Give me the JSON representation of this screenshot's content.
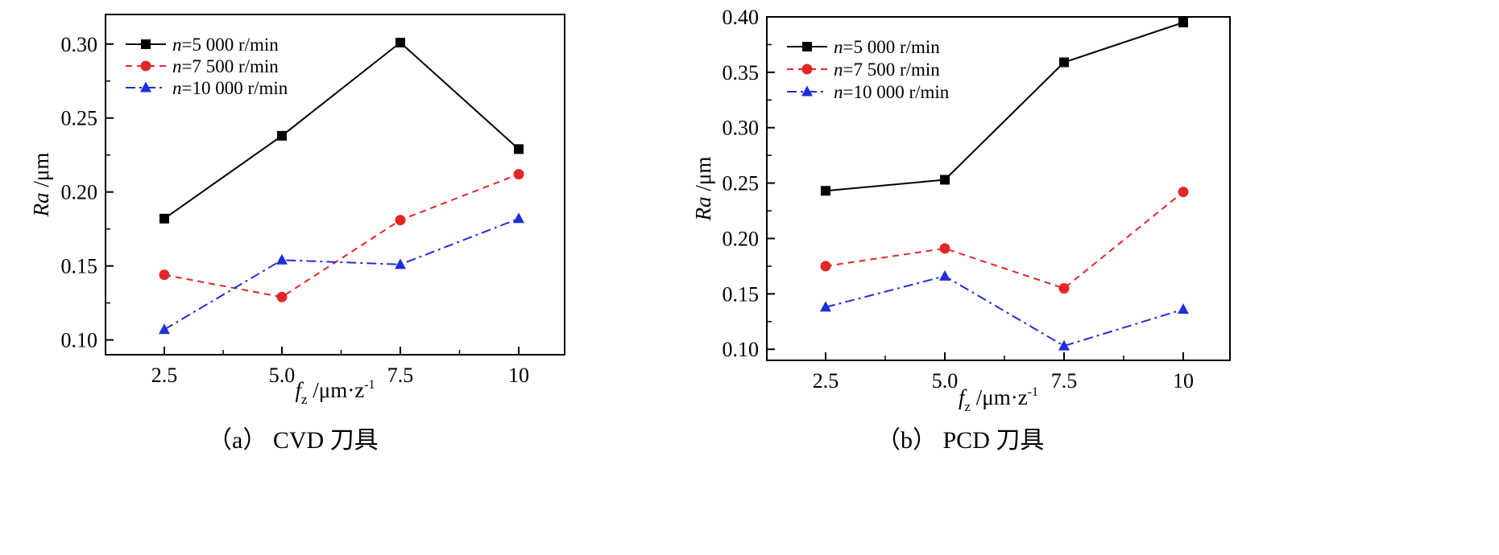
{
  "chart_data": [
    {
      "type": "line",
      "caption": "（a） CVD 刀具",
      "xlabel_main": "f",
      "xlabel_sub": "z",
      "xlabel_unit": " /μm·z",
      "xlabel_sup": "-1",
      "ylabel_main": "Ra",
      "ylabel_unit": " /μm",
      "categories": [
        "2.5",
        "5.0",
        "7.5",
        "10"
      ],
      "yticks": [
        "0.10",
        "0.15",
        "0.20",
        "0.25",
        "0.30"
      ],
      "ylim": [
        0.09,
        0.32
      ],
      "series": [
        {
          "name": "n=5 000 r/min",
          "name_italic": "n",
          "name_rest": "=5 000 r/min",
          "color": "#000000",
          "dash": "",
          "marker": "square",
          "values": [
            0.182,
            0.238,
            0.301,
            0.229
          ]
        },
        {
          "name": "n=7 500 r/min",
          "name_italic": "n",
          "name_rest": "=7 500 r/min",
          "color": "#e32626",
          "dash": "8,6",
          "marker": "circle",
          "values": [
            0.144,
            0.129,
            0.181,
            0.212
          ]
        },
        {
          "name": "n=10 000 r/min",
          "name_italic": "n",
          "name_rest": "=10 000 r/min",
          "color": "#1f2ed6",
          "dash": "12,5,3,5",
          "marker": "triangle",
          "values": [
            0.107,
            0.154,
            0.151,
            0.182
          ]
        }
      ]
    },
    {
      "type": "line",
      "caption": "（b） PCD 刀具",
      "xlabel_main": "f",
      "xlabel_sub": "z",
      "xlabel_unit": " /μm·z",
      "xlabel_sup": "-1",
      "ylabel_main": "Ra",
      "ylabel_unit": " /μm",
      "categories": [
        "2.5",
        "5.0",
        "7.5",
        "10"
      ],
      "yticks": [
        "0.10",
        "0.15",
        "0.20",
        "0.25",
        "0.30",
        "0.35",
        "0.40"
      ],
      "ylim": [
        0.09,
        0.4
      ],
      "series": [
        {
          "name": "n=5 000 r/min",
          "name_italic": "n",
          "name_rest": "=5 000 r/min",
          "color": "#000000",
          "dash": "",
          "marker": "square",
          "values": [
            0.243,
            0.253,
            0.359,
            0.395
          ]
        },
        {
          "name": "n=7 500 r/min",
          "name_italic": "n",
          "name_rest": "=7 500 r/min",
          "color": "#e32626",
          "dash": "8,6",
          "marker": "circle",
          "values": [
            0.175,
            0.191,
            0.155,
            0.242
          ]
        },
        {
          "name": "n=10 000 r/min",
          "name_italic": "n",
          "name_rest": "=10 000 r/min",
          "color": "#1f2ed6",
          "dash": "12,5,3,5",
          "marker": "triangle",
          "values": [
            0.138,
            0.166,
            0.103,
            0.136
          ]
        }
      ]
    }
  ]
}
